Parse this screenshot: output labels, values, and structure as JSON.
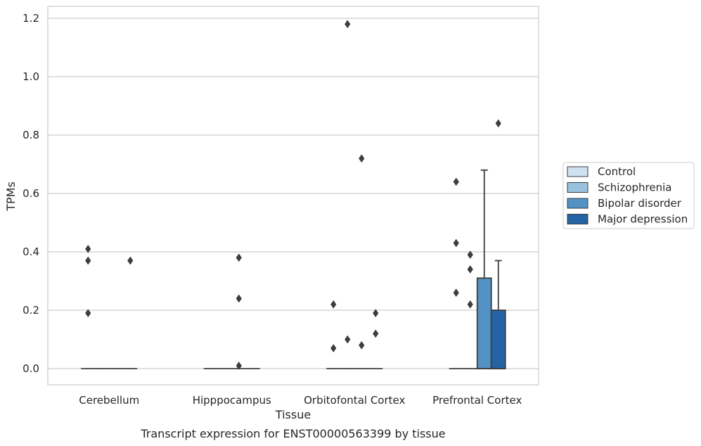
{
  "chart_data": {
    "type": "box",
    "xlabel": "Tissue",
    "ylabel": "TPMs",
    "caption": "Transcript expression for ENST00000563399 by tissue",
    "categories": [
      "Cerebellum",
      "Hipppocampus",
      "Orbitofontal Cortex",
      "Prefrontal Cortex"
    ],
    "ylim": [
      -0.06,
      1.24
    ],
    "yticks": [
      "0.0",
      "0.2",
      "0.4",
      "0.6",
      "0.8",
      "1.0",
      "1.2"
    ],
    "grid": "horizontal",
    "legend_position": "right",
    "series": [
      {
        "name": "Control",
        "color": "#d0e2f2",
        "boxes": [
          {
            "q1": 0,
            "median": 0,
            "q3": 0,
            "whisker_low": 0,
            "whisker_high": 0,
            "outliers": [
              0.41,
              0.37,
              0.19
            ]
          },
          {
            "q1": 0,
            "median": 0,
            "q3": 0,
            "whisker_low": 0,
            "whisker_high": 0,
            "outliers": []
          },
          {
            "q1": 0,
            "median": 0,
            "q3": 0,
            "whisker_low": 0,
            "whisker_high": 0,
            "outliers": [
              0.07,
              0.22
            ]
          },
          {
            "q1": 0,
            "median": 0,
            "q3": 0,
            "whisker_low": 0,
            "whisker_high": 0,
            "outliers": [
              0.64,
              0.43,
              0.26
            ]
          }
        ]
      },
      {
        "name": "Schizophrenia",
        "color": "#9ac2de",
        "boxes": [
          {
            "q1": 0,
            "median": 0,
            "q3": 0,
            "whisker_low": 0,
            "whisker_high": 0,
            "outliers": []
          },
          {
            "q1": 0,
            "median": 0,
            "q3": 0,
            "whisker_low": 0,
            "whisker_high": 0,
            "outliers": []
          },
          {
            "q1": 0,
            "median": 0,
            "q3": 0,
            "whisker_low": 0,
            "whisker_high": 0,
            "outliers": [
              1.18,
              0.1
            ]
          },
          {
            "q1": 0,
            "median": 0,
            "q3": 0,
            "whisker_low": 0,
            "whisker_high": 0,
            "outliers": [
              0.39,
              0.34,
              0.22
            ]
          }
        ]
      },
      {
        "name": "Bipolar disorder",
        "color": "#5292c4",
        "boxes": [
          {
            "q1": 0,
            "median": 0,
            "q3": 0,
            "whisker_low": 0,
            "whisker_high": 0,
            "outliers": []
          },
          {
            "q1": 0,
            "median": 0,
            "q3": 0,
            "whisker_low": 0,
            "whisker_high": 0,
            "outliers": [
              0.38,
              0.24,
              0.01
            ]
          },
          {
            "q1": 0,
            "median": 0,
            "q3": 0,
            "whisker_low": 0,
            "whisker_high": 0,
            "outliers": [
              0.72,
              0.08
            ]
          },
          {
            "q1": 0,
            "median": 0,
            "q3": 0.31,
            "whisker_low": 0,
            "whisker_high": 0.68,
            "outliers": []
          }
        ]
      },
      {
        "name": "Major depression",
        "color": "#2464a4",
        "boxes": [
          {
            "q1": 0,
            "median": 0,
            "q3": 0,
            "whisker_low": 0,
            "whisker_high": 0,
            "outliers": [
              0.37
            ]
          },
          {
            "q1": 0,
            "median": 0,
            "q3": 0,
            "whisker_low": 0,
            "whisker_high": 0,
            "outliers": []
          },
          {
            "q1": 0,
            "median": 0,
            "q3": 0,
            "whisker_low": 0,
            "whisker_high": 0,
            "outliers": [
              0.19,
              0.12
            ]
          },
          {
            "q1": 0,
            "median": 0,
            "q3": 0.2,
            "whisker_low": 0,
            "whisker_high": 0.37,
            "outliers": [
              0.84
            ]
          }
        ]
      }
    ]
  }
}
